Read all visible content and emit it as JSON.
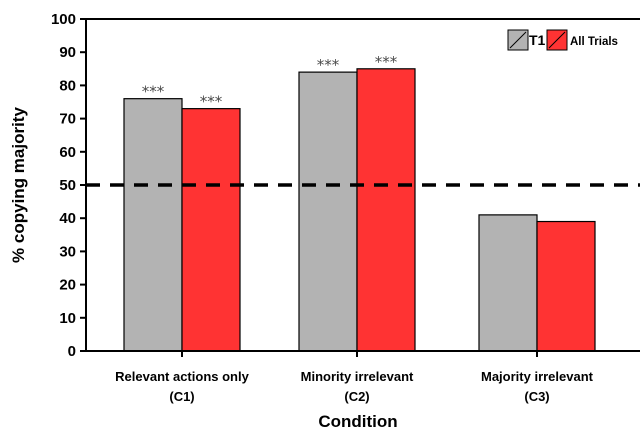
{
  "chart_data": {
    "type": "bar",
    "categories": [
      {
        "line1": "Relevant actions only",
        "line2": "(C1)"
      },
      {
        "line1": "Minority irrelevant",
        "line2": "(C2)"
      },
      {
        "line1": "Majority irrelevant",
        "line2": "(C3)"
      }
    ],
    "series": [
      {
        "name": "T1",
        "color": "#b3b3b3",
        "values": [
          76,
          84,
          41
        ]
      },
      {
        "name": "All Trials",
        "color": "#ff3333",
        "values": [
          73,
          85,
          39
        ]
      }
    ],
    "significance": [
      [
        "***",
        "***"
      ],
      [
        "***",
        "***"
      ],
      [
        "",
        ""
      ]
    ],
    "ylim": [
      0,
      100
    ],
    "yticks": [
      0,
      10,
      20,
      30,
      40,
      50,
      60,
      70,
      80,
      90,
      100
    ],
    "ylabel": "% copying majority",
    "xlabel": "Condition",
    "reference_line": {
      "value": 50,
      "style": "dashed"
    },
    "legend_position": "top-right",
    "grid": false
  }
}
